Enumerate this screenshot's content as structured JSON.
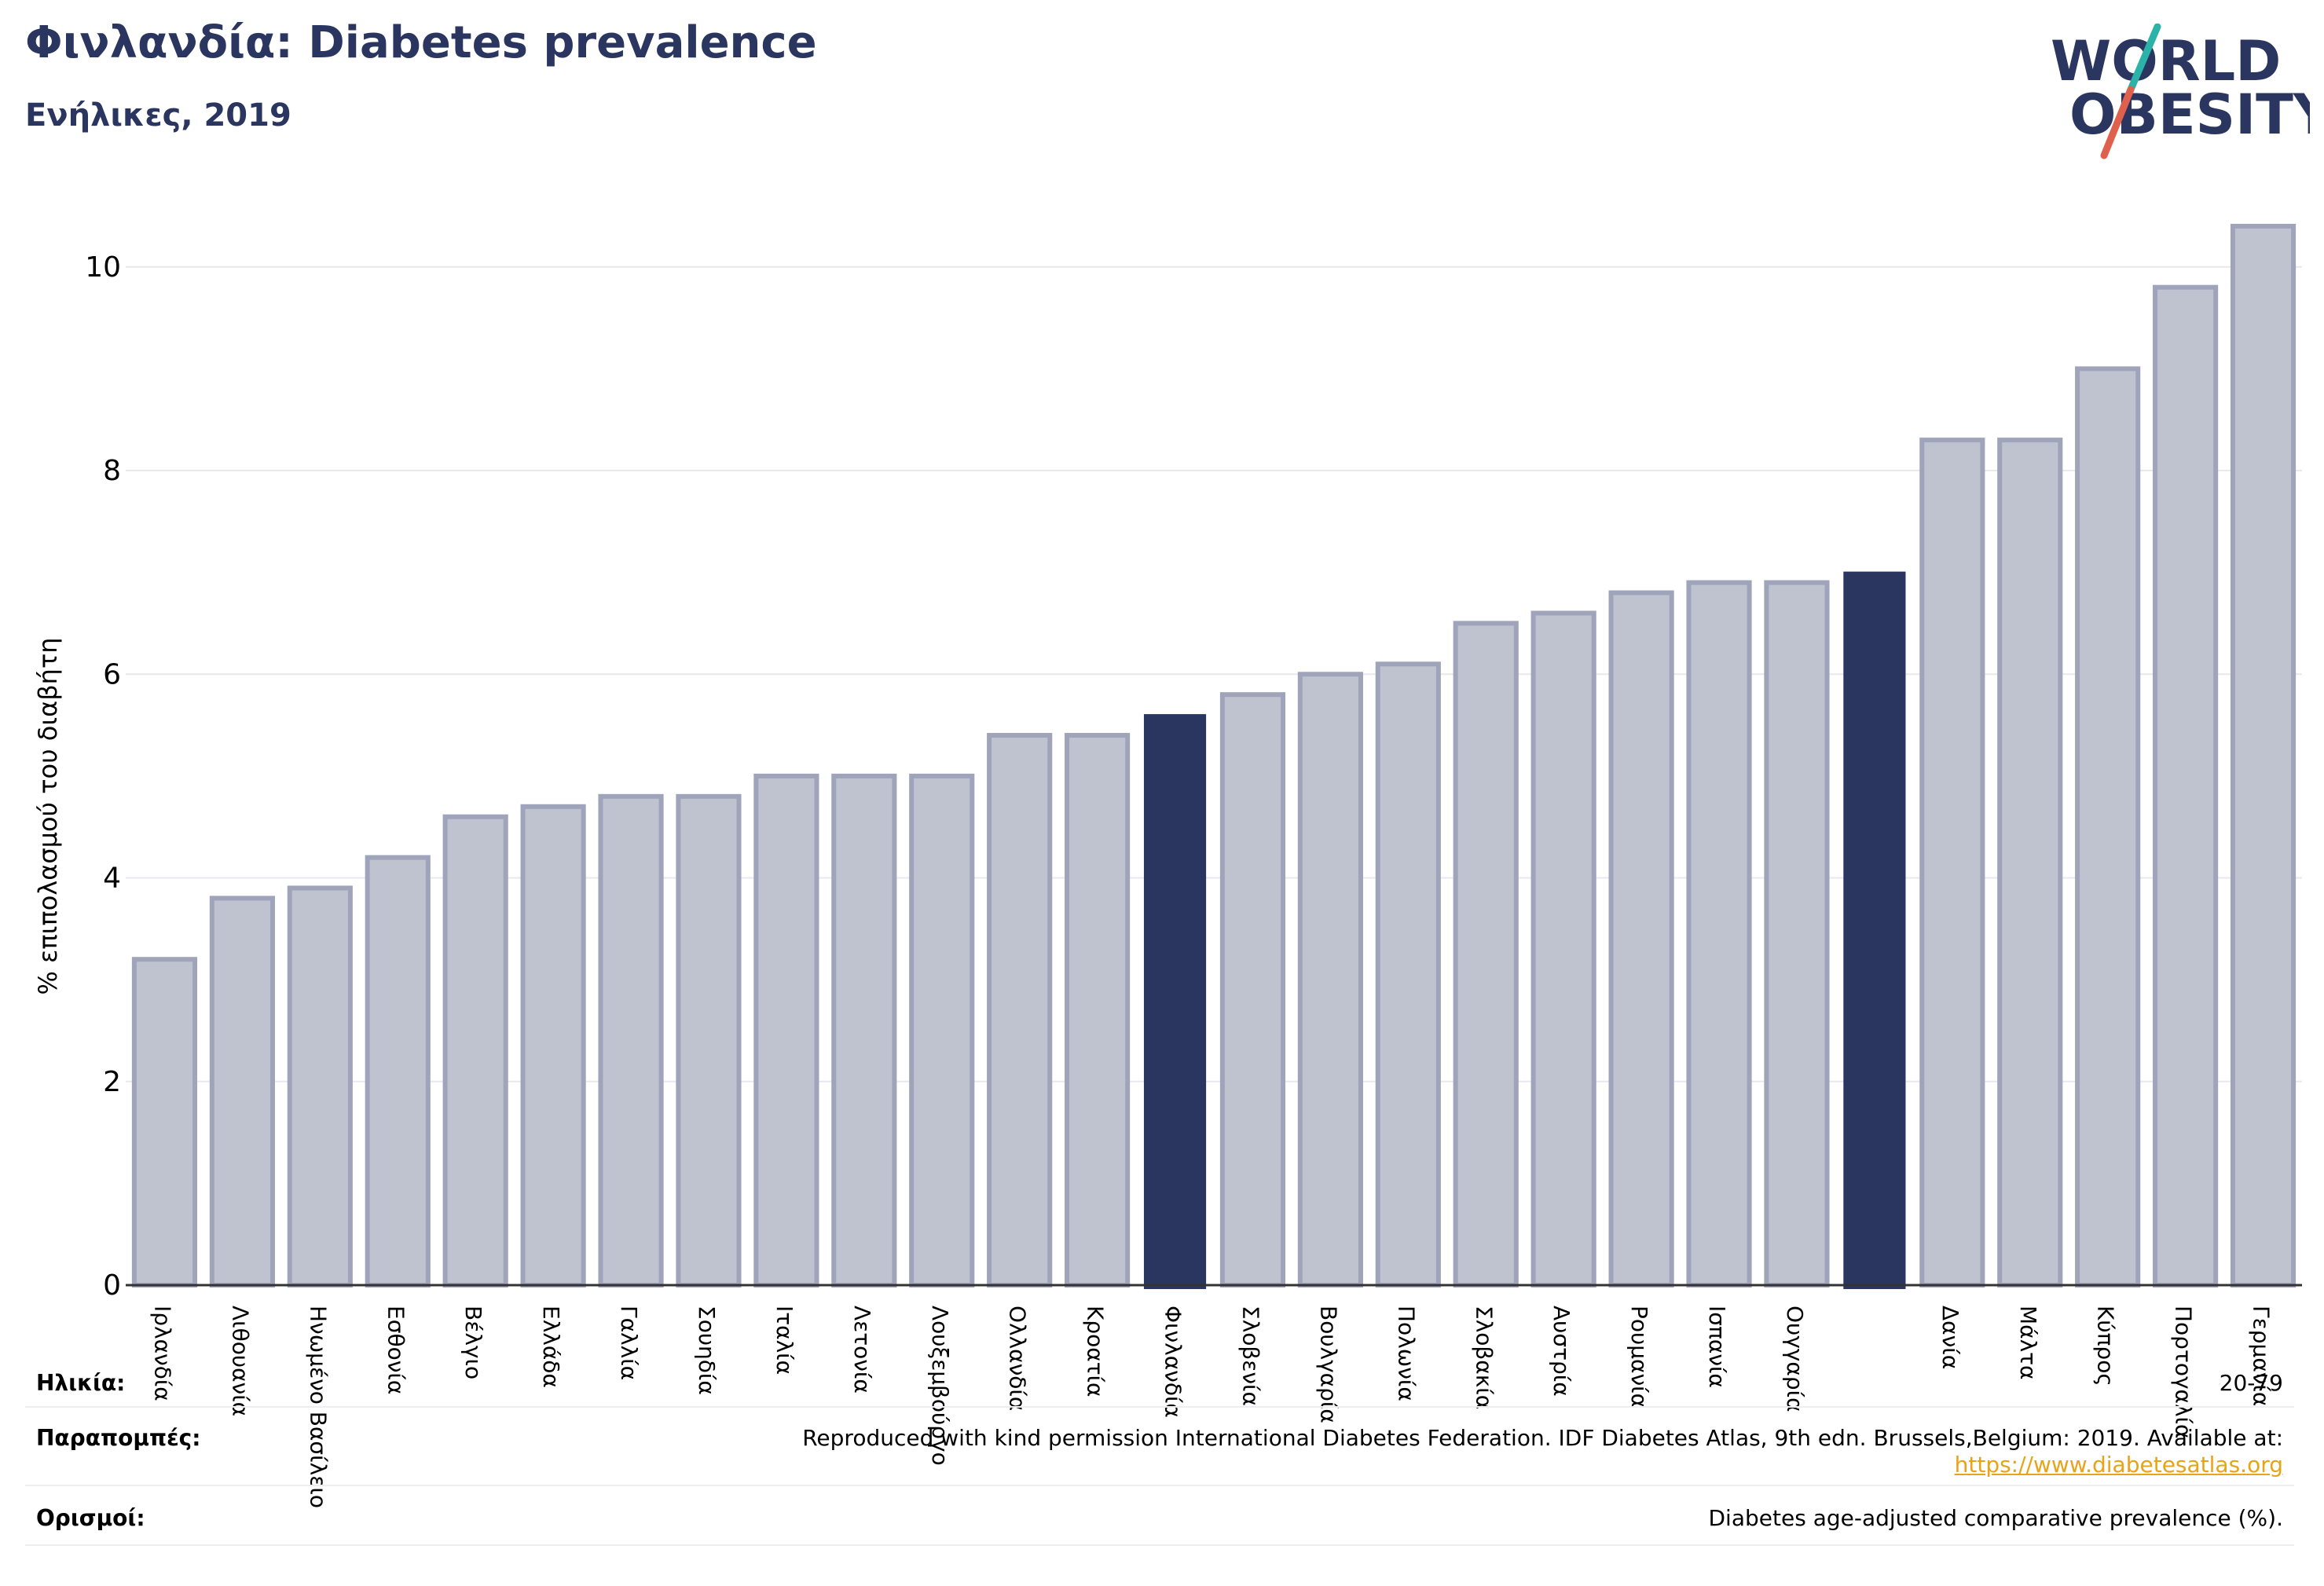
{
  "header": {
    "title": "Φινλανδία: Diabetes prevalence",
    "subtitle": "Ενήλικες, 2019"
  },
  "logo": {
    "line1": "WORLD",
    "line2": "OBESITY"
  },
  "colors": {
    "highlight": "#2a3560",
    "bar_fill": "#bfc2cf",
    "bar_stroke": "#9fa4ba",
    "axis_text": "#000000",
    "grid": "#e8e8ee",
    "logo_teal": "#2bb3a8",
    "logo_red": "#e0604e",
    "link": "#e8a317"
  },
  "chart_data": {
    "type": "bar",
    "title": "",
    "xlabel": "",
    "ylabel": "% επιπολασμού του διαβήτη",
    "ylim": [
      0,
      10.6
    ],
    "yticks": [
      0,
      2,
      4,
      6,
      8,
      10
    ],
    "grid": true,
    "categories": [
      "Ιρλανδία",
      "Λιθουανία",
      "Ηνωμένο Βασίλειο",
      "Εσθονία",
      "Βέλγιο",
      "Ελλάδα",
      "Γαλλία",
      "Σουηδία",
      "Ιταλία",
      "Λετονία",
      "Λουξεμβούργο",
      "Ολλανδία",
      "Κροατία",
      "Φινλανδία",
      "Σλοβενία",
      "Βουλγαρία",
      "Πολωνία",
      "Σλοβακία",
      "Αυστρία",
      "Ρουμανία",
      "Ισπανία",
      "Ουγγαρία",
      "",
      "Δανία",
      "Μάλτα",
      "Κύπρος",
      "Πορτογαλία",
      "Γερμανία"
    ],
    "values": [
      3.2,
      3.8,
      3.9,
      4.2,
      4.6,
      4.7,
      4.8,
      4.8,
      5.0,
      5.0,
      5.0,
      5.4,
      5.4,
      5.6,
      5.8,
      6.0,
      6.1,
      6.5,
      6.6,
      6.8,
      6.9,
      6.9,
      7.0,
      8.3,
      8.3,
      9.0,
      9.8,
      10.4
    ],
    "highlighted": [
      "Φινλανδία",
      ""
    ]
  },
  "footer": {
    "age_label": "Ηλικία:",
    "age_value": "20-79",
    "refs_label": "Παραπομπές:",
    "refs_value": "Reproduced with kind permission International Diabetes Federation. IDF Diabetes Atlas, 9th edn. Brussels,Belgium: 2019. Available at:",
    "refs_link": "https://www.diabetesatlas.org",
    "defs_label": "Ορισμοί:",
    "defs_value": "Diabetes age-adjusted comparative prevalence (%)."
  }
}
